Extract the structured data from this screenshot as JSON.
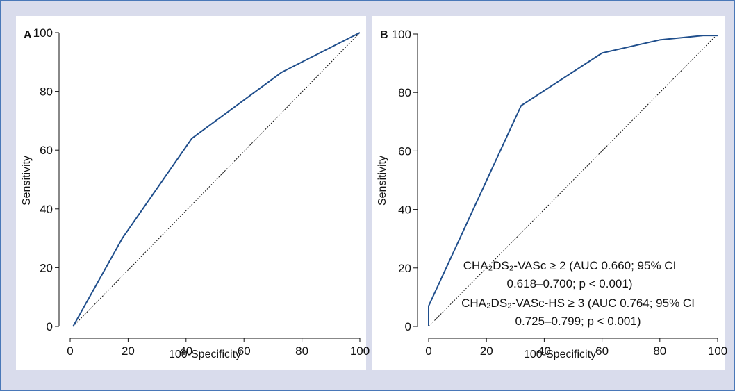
{
  "chart_data": [
    {
      "panel_label": "A",
      "type": "line",
      "xlabel": "100-Specificity",
      "ylabel": "Sensitivity",
      "xlim": [
        0,
        100
      ],
      "ylim": [
        0,
        100
      ],
      "xticks": [
        "0",
        "20",
        "40",
        "60",
        "80",
        "100"
      ],
      "yticks": [
        "0",
        "20",
        "40",
        "60",
        "80",
        "100"
      ],
      "grid": false,
      "series": [
        {
          "x": [
            1,
            18,
            42,
            73,
            100
          ],
          "y": [
            0,
            30,
            64,
            86.5,
            100
          ],
          "color": "#1f4e8c"
        }
      ],
      "reference_line": {
        "x": [
          1,
          100
        ],
        "y": [
          0,
          100
        ]
      },
      "annotations": []
    },
    {
      "panel_label": "B",
      "type": "line",
      "xlabel": "100-Specificity",
      "ylabel": "Sensitivity",
      "xlim": [
        0,
        100
      ],
      "ylim": [
        0,
        100
      ],
      "xticks": [
        "0",
        "20",
        "40",
        "60",
        "80",
        "100"
      ],
      "yticks": [
        "0",
        "20",
        "40",
        "60",
        "80",
        "100"
      ],
      "grid": false,
      "series": [
        {
          "x": [
            0,
            0,
            32,
            60,
            80,
            95,
            100
          ],
          "y": [
            0,
            7,
            75.5,
            93.5,
            98,
            99.5,
            99.5
          ],
          "color": "#1f4e8c"
        }
      ],
      "reference_line": {
        "x": [
          0,
          100
        ],
        "y": [
          0,
          100
        ]
      },
      "annotations": [
        "CHA₂DS₂-VASc ≥ 2 (AUC 0.660; 95% CI",
        "0.618–0.700; p < 0.001)",
        "CHA₂DS₂-VASc-HS ≥ 3 (AUC 0.764; 95% CI",
        "0.725–0.799; p < 0.001)"
      ]
    }
  ]
}
